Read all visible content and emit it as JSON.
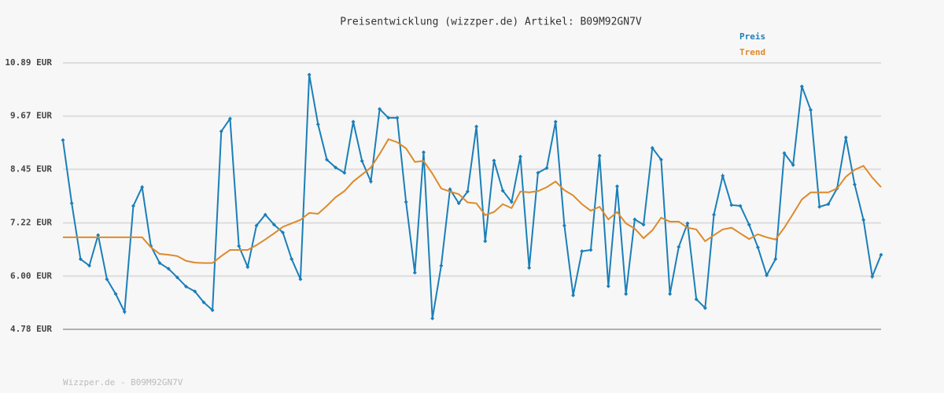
{
  "chart_data": {
    "type": "line",
    "title": "Preisentwicklung (wizzper.de) Artikel: B09M92GN7V",
    "footer": "Wizzper.de - B09M92GN7V",
    "categories": [
      null,
      null,
      null,
      null,
      null,
      null,
      null,
      null,
      null,
      null,
      null,
      null,
      null,
      null,
      null,
      null,
      null,
      null,
      null,
      null,
      null,
      null,
      null,
      null,
      null,
      null,
      null,
      null,
      null,
      null,
      null,
      null,
      null,
      null,
      null,
      null,
      null,
      null,
      null,
      null,
      null,
      null,
      null,
      null,
      null,
      null,
      null,
      null,
      null,
      null,
      null,
      null,
      null,
      null,
      null,
      null,
      null,
      null,
      null,
      null,
      null,
      null,
      null,
      null,
      null,
      null,
      null,
      null,
      null,
      null,
      null,
      null,
      null,
      null,
      null,
      null,
      null,
      null,
      null,
      null,
      null,
      null,
      null,
      null,
      null,
      null,
      null,
      null,
      null,
      null,
      null,
      null,
      null,
      null
    ],
    "series": [
      {
        "name": "Preis",
        "color": "#1a7fb8",
        "markers": true,
        "values": [
          9.12,
          7.67,
          6.39,
          6.24,
          6.94,
          5.93,
          5.59,
          5.18,
          7.61,
          8.04,
          6.69,
          6.3,
          6.17,
          5.97,
          5.76,
          5.65,
          5.4,
          5.22,
          9.32,
          9.61,
          6.69,
          6.21,
          7.16,
          7.41,
          7.18,
          7.0,
          6.39,
          5.93,
          10.62,
          9.48,
          8.67,
          8.49,
          8.37,
          9.54,
          8.64,
          8.17,
          9.83,
          9.63,
          9.63,
          7.7,
          6.08,
          8.84,
          5.03,
          6.24,
          7.99,
          7.67,
          7.94,
          9.43,
          6.8,
          8.65,
          7.96,
          7.7,
          8.74,
          6.19,
          8.37,
          8.48,
          9.54,
          7.16,
          5.56,
          6.57,
          6.6,
          8.76,
          5.77,
          8.06,
          5.59,
          7.3,
          7.18,
          8.94,
          8.67,
          5.59,
          6.67,
          7.21,
          5.47,
          5.27,
          7.41,
          8.3,
          7.63,
          7.61,
          7.18,
          6.66,
          6.02,
          6.39,
          8.82,
          8.55,
          10.35,
          9.81,
          7.59,
          7.65,
          8.01,
          9.18,
          8.1,
          7.29,
          5.99,
          6.49
        ]
      },
      {
        "name": "Trend",
        "color": "#dd8a2a",
        "markers": false,
        "values": [
          6.89,
          6.89,
          6.89,
          6.89,
          6.89,
          6.89,
          6.89,
          6.89,
          6.89,
          6.89,
          6.66,
          6.51,
          6.49,
          6.46,
          6.35,
          6.31,
          6.3,
          6.3,
          6.46,
          6.6,
          6.6,
          6.6,
          6.71,
          6.84,
          6.98,
          7.13,
          7.21,
          7.29,
          7.45,
          7.43,
          7.61,
          7.81,
          7.95,
          8.17,
          8.33,
          8.49,
          8.8,
          9.14,
          9.07,
          8.93,
          8.62,
          8.64,
          8.35,
          8.01,
          7.94,
          7.88,
          7.69,
          7.67,
          7.4,
          7.47,
          7.65,
          7.56,
          7.94,
          7.92,
          7.95,
          8.04,
          8.17,
          7.97,
          7.85,
          7.65,
          7.5,
          7.59,
          7.3,
          7.47,
          7.21,
          7.09,
          6.87,
          7.05,
          7.34,
          7.25,
          7.25,
          7.11,
          7.07,
          6.8,
          6.94,
          7.07,
          7.11,
          6.98,
          6.85,
          6.96,
          6.89,
          6.84,
          7.11,
          7.43,
          7.76,
          7.92,
          7.92,
          7.92,
          8.01,
          8.28,
          8.44,
          8.53,
          8.26,
          8.04
        ]
      }
    ],
    "ylim": [
      4.78,
      10.89
    ],
    "yticks": [
      {
        "value": 4.78,
        "label": "4.78 EUR"
      },
      {
        "value": 6.0,
        "label": "6.00 EUR"
      },
      {
        "value": 7.22,
        "label": "7.22 EUR"
      },
      {
        "value": 8.45,
        "label": "8.45 EUR"
      },
      {
        "value": 9.67,
        "label": "9.67 EUR"
      },
      {
        "value": 10.89,
        "label": "10.89 EUR"
      }
    ],
    "grid": true
  }
}
